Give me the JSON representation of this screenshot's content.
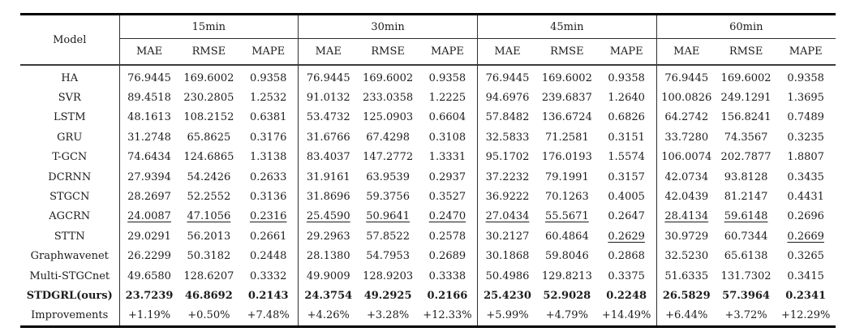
{
  "table": {
    "model_header": "Model",
    "metrics": [
      "MAE",
      "RMSE",
      "MAPE"
    ],
    "groups": [
      {
        "label": "15min"
      },
      {
        "label": "30min"
      },
      {
        "label": "45min"
      },
      {
        "label": "60min"
      }
    ],
    "rows": [
      {
        "model": "HA",
        "bold": false,
        "underline": [],
        "values": [
          "76.9445",
          "169.6002",
          "0.9358",
          "76.9445",
          "169.6002",
          "0.9358",
          "76.9445",
          "169.6002",
          "0.9358",
          "76.9445",
          "169.6002",
          "0.9358"
        ]
      },
      {
        "model": "SVR",
        "bold": false,
        "underline": [],
        "values": [
          "89.4518",
          "230.2805",
          "1.2532",
          "91.0132",
          "233.0358",
          "1.2225",
          "94.6976",
          "239.6837",
          "1.2640",
          "100.0826",
          "249.1291",
          "1.3695"
        ]
      },
      {
        "model": "LSTM",
        "bold": false,
        "underline": [],
        "values": [
          "48.1613",
          "108.2152",
          "0.6381",
          "53.4732",
          "125.0903",
          "0.6604",
          "57.8482",
          "136.6724",
          "0.6826",
          "64.2742",
          "156.8241",
          "0.7489"
        ]
      },
      {
        "model": "GRU",
        "bold": false,
        "underline": [],
        "values": [
          "31.2748",
          "65.8625",
          "0.3176",
          "31.6766",
          "67.4298",
          "0.3108",
          "32.5833",
          "71.2581",
          "0.3151",
          "33.7280",
          "74.3567",
          "0.3235"
        ]
      },
      {
        "model": "T-GCN",
        "bold": false,
        "underline": [],
        "values": [
          "74.6434",
          "124.6865",
          "1.3138",
          "83.4037",
          "147.2772",
          "1.3331",
          "95.1702",
          "176.0193",
          "1.5574",
          "106.0074",
          "202.7877",
          "1.8807"
        ]
      },
      {
        "model": "DCRNN",
        "bold": false,
        "underline": [],
        "values": [
          "27.9394",
          "54.2426",
          "0.2633",
          "31.9161",
          "63.9539",
          "0.2937",
          "37.2232",
          "79.1991",
          "0.3157",
          "42.0734",
          "93.8128",
          "0.3435"
        ]
      },
      {
        "model": "STGCN",
        "bold": false,
        "underline": [],
        "values": [
          "28.2697",
          "52.2552",
          "0.3136",
          "31.8696",
          "59.3756",
          "0.3527",
          "36.9222",
          "70.1263",
          "0.4005",
          "42.0439",
          "81.2147",
          "0.4431"
        ]
      },
      {
        "model": "AGCRN",
        "bold": false,
        "underline": [
          0,
          1,
          2,
          3,
          4,
          5,
          6,
          7,
          9,
          10
        ],
        "values": [
          "24.0087",
          "47.1056",
          "0.2316",
          "25.4590",
          "50.9641",
          "0.2470",
          "27.0434",
          "55.5671",
          "0.2647",
          "28.4134",
          "59.6148",
          "0.2696"
        ]
      },
      {
        "model": "STTN",
        "bold": false,
        "underline": [
          8,
          11
        ],
        "values": [
          "29.0291",
          "56.2013",
          "0.2661",
          "29.2963",
          "57.8522",
          "0.2578",
          "30.2127",
          "60.4864",
          "0.2629",
          "30.9729",
          "60.7344",
          "0.2669"
        ]
      },
      {
        "model": "Graphwavenet",
        "bold": false,
        "underline": [],
        "values": [
          "26.2299",
          "50.3182",
          "0.2448",
          "28.1380",
          "54.7953",
          "0.2689",
          "30.1868",
          "59.8046",
          "0.2868",
          "32.5230",
          "65.6138",
          "0.3265"
        ]
      },
      {
        "model": "Multi-STGCnet",
        "bold": false,
        "underline": [],
        "values": [
          "49.6580",
          "128.6207",
          "0.3332",
          "49.9009",
          "128.9203",
          "0.3338",
          "50.4986",
          "129.8213",
          "0.3375",
          "51.6335",
          "131.7302",
          "0.3415"
        ]
      },
      {
        "model": "STDGRL(ours)",
        "bold": true,
        "underline": [],
        "values": [
          "23.7239",
          "46.8692",
          "0.2143",
          "24.3754",
          "49.2925",
          "0.2166",
          "25.4230",
          "52.9028",
          "0.2248",
          "26.5829",
          "57.3964",
          "0.2341"
        ]
      },
      {
        "model": "Improvements",
        "bold": false,
        "underline": [],
        "values": [
          "+1.19%",
          "+0.50%",
          "+7.48%",
          "+4.26%",
          "+3.28%",
          "+12.33%",
          "+5.99%",
          "+4.79%",
          "+14.49%",
          "+6.44%",
          "+3.72%",
          "+12.29%"
        ]
      }
    ]
  }
}
